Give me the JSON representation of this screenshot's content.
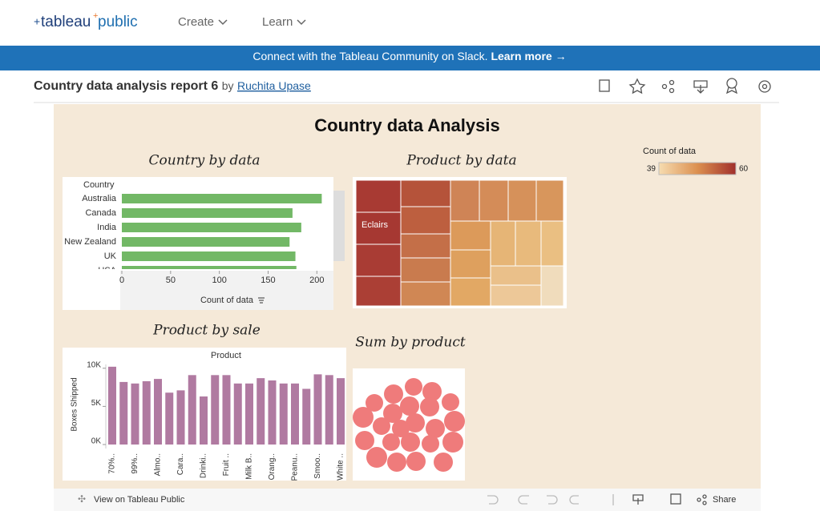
{
  "header": {
    "logo": [
      "tableau",
      "public"
    ],
    "nav": [
      "Create",
      "Learn"
    ]
  },
  "banner": {
    "text": "Connect with the Tableau Community on Slack.",
    "link": "Learn more →"
  },
  "report": {
    "title": "Country data analysis report 6",
    "by": "by",
    "author": "Ruchita Upase"
  },
  "dashboard": {
    "title": "Country data Analysis",
    "country_chart": {
      "type": "bar",
      "title": "Country by data",
      "category_header": "Country",
      "categories": [
        "Australia",
        "Canada",
        "India",
        "New Zealand",
        "UK",
        "USA"
      ],
      "values": [
        205,
        175,
        184,
        172,
        178,
        179
      ],
      "color": "#72b866",
      "xlim": [
        0,
        217
      ],
      "xticks": [
        0,
        50,
        100,
        150,
        200
      ],
      "xlabel": "Count of data"
    },
    "treemap": {
      "title": "Product by data",
      "label": "Eclairs",
      "legend": {
        "title": "Count of data",
        "min": 39,
        "max": 60
      }
    },
    "sale_chart": {
      "type": "bar",
      "title": "Product by sale",
      "header": "Product",
      "ylabel": "Boxes Shipped",
      "categories": [
        "70%..",
        null,
        "99%..",
        null,
        "Almo..",
        null,
        "Cara..",
        null,
        "Drinki..",
        null,
        "Fruit ..",
        null,
        "Milk B..",
        null,
        "Orang..",
        null,
        "Peanu..",
        null,
        "Smoo..",
        null,
        "White .."
      ],
      "values": [
        10200,
        8200,
        8000,
        8300,
        8600,
        6800,
        7100,
        9100,
        6300,
        9100,
        9100,
        8000,
        8000,
        8700,
        8400,
        8000,
        8000,
        7300,
        9200,
        9100,
        8700
      ],
      "color": "#b07aa1",
      "ylim": [
        0,
        10500
      ],
      "yticks": [
        {
          "value": 0,
          "label": "0K"
        },
        {
          "value": 5000,
          "label": "5K"
        },
        {
          "value": 10000,
          "label": "10K"
        }
      ]
    },
    "bubble_chart": {
      "title": "Sum by product"
    }
  },
  "toolbar": {
    "view": "View on Tableau Public",
    "share": "Share"
  }
}
